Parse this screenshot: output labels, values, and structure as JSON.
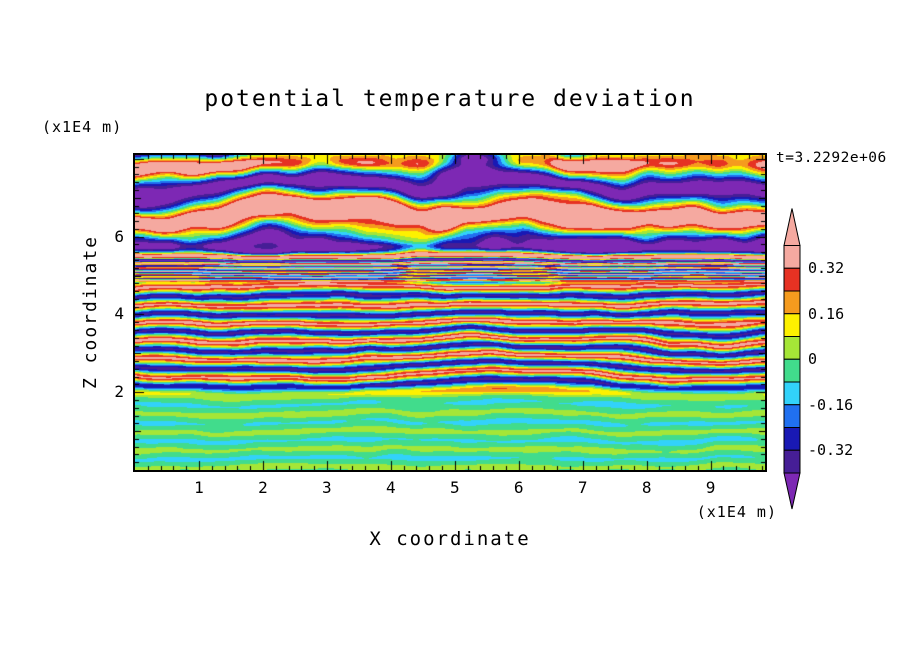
{
  "chart_data": {
    "type": "heatmap",
    "title": "potential temperature deviation",
    "annotation_time": "t=3.2292e+06",
    "xlabel": "X coordinate",
    "ylabel": "Z coordinate",
    "x_axis_unit": "(x1E4 m)",
    "y_axis_unit": "(x1E4 m)",
    "xlim": [
      0,
      9.85
    ],
    "ylim": [
      0,
      8.1
    ],
    "x_tick_values": [
      1,
      2,
      3,
      4,
      5,
      6,
      7,
      8,
      9
    ],
    "x_tick_labels": [
      "1",
      "2",
      "3",
      "4",
      "5",
      "6",
      "7",
      "8",
      "9"
    ],
    "y_tick_values": [
      2,
      4,
      6
    ],
    "y_tick_labels": [
      "2",
      "4",
      "6"
    ],
    "grid": false,
    "legend_position": "right-colorbar",
    "colorbar": {
      "orientation": "vertical",
      "tick_labels": [
        "0.32",
        "0.16",
        "0",
        "-0.16",
        "-0.32"
      ],
      "tick_values": [
        0.32,
        0.16,
        0,
        -0.16,
        -0.32
      ],
      "level_edges_top_to_bottom": [
        0.4,
        0.32,
        0.24,
        0.16,
        0.08,
        0,
        -0.08,
        -0.16,
        -0.24,
        -0.32,
        -0.4
      ],
      "band_colors_top_to_bottom": [
        "#f5a9a0",
        "#e63223",
        "#f59b1e",
        "#fdf100",
        "#a5e637",
        "#41dc8c",
        "#32d2fa",
        "#2070f0",
        "#1919b4",
        "#461e96"
      ],
      "over_arrow_color": "#f5a9a0",
      "under_arrow_color": "#7d28b4"
    },
    "field_model": {
      "amp_bottom": 0.055,
      "amp_mid": 0.34,
      "amp_top": 0.5,
      "wavelength_mid": 0.46,
      "wavelength_top": 1.55,
      "lower_transition": [
        1.8,
        2.25
      ],
      "upper_transition": [
        4.8,
        5.8
      ],
      "bottom_bias": -0.035,
      "top_edge_darkening": 0.35
    }
  }
}
